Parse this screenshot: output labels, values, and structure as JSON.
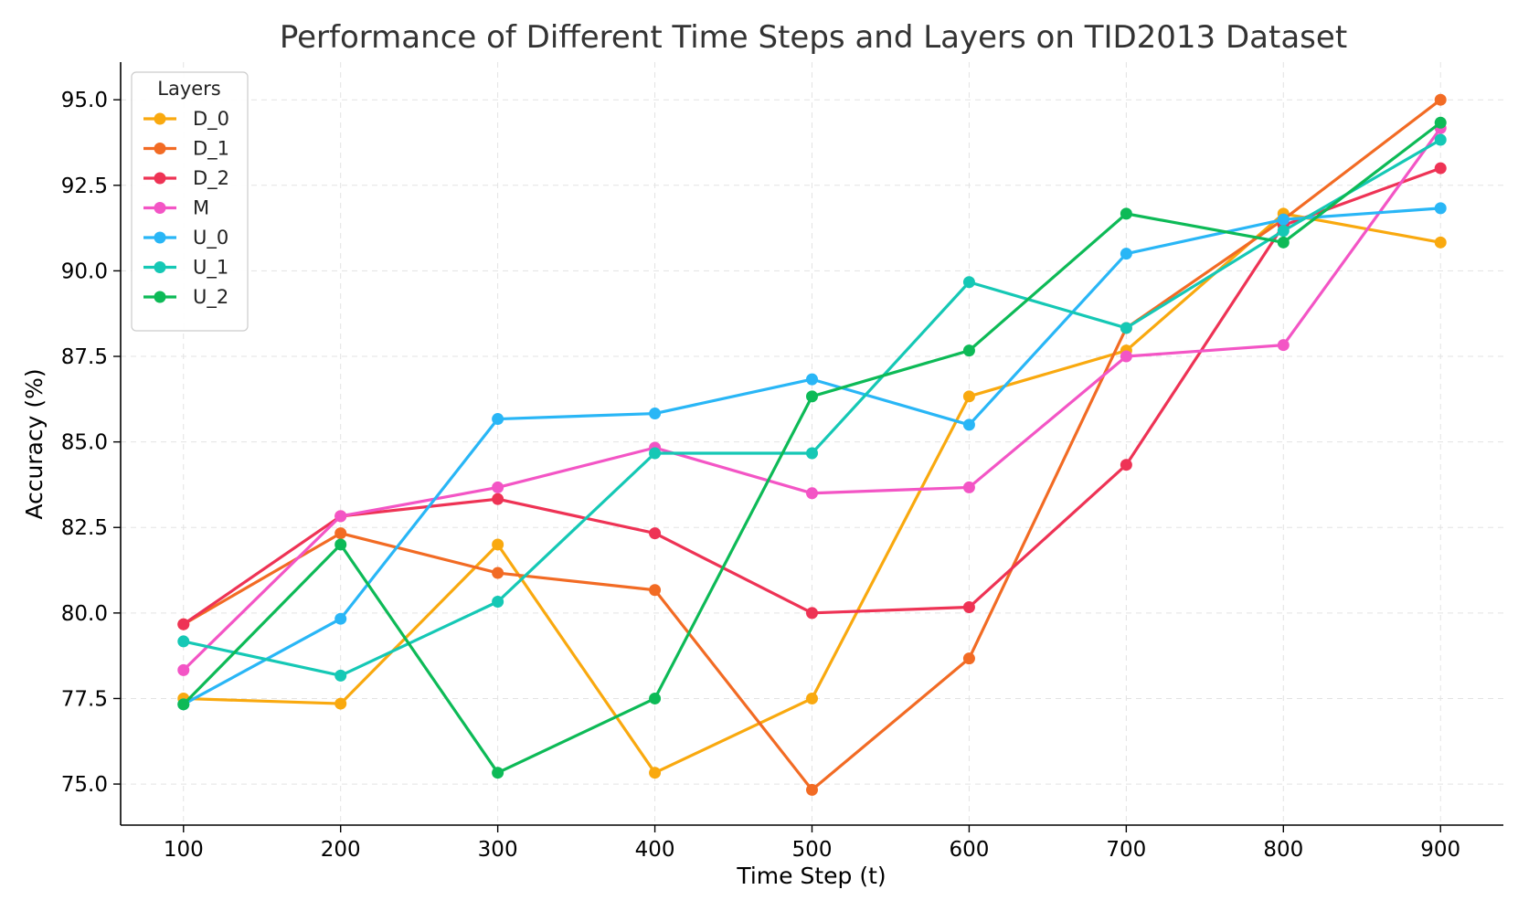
{
  "chart_data": {
    "type": "line",
    "title": "Performance of Different Time Steps and Layers on TID2013 Dataset",
    "xlabel": "Time Step (t)",
    "ylabel": "Accuracy (%)",
    "x": [
      100,
      200,
      300,
      400,
      500,
      600,
      700,
      800,
      900
    ],
    "x_tick_labels": [
      "100",
      "200",
      "300",
      "400",
      "500",
      "600",
      "700",
      "800",
      "900"
    ],
    "y_ticks": [
      75.0,
      77.5,
      80.0,
      82.5,
      85.0,
      87.5,
      90.0,
      92.5,
      95.0
    ],
    "y_tick_labels": [
      "75.0",
      "77.5",
      "80.0",
      "82.5",
      "85.0",
      "87.5",
      "90.0",
      "92.5",
      "95.0"
    ],
    "xlim": [
      60,
      940
    ],
    "ylim": [
      73.8,
      96.1
    ],
    "grid": true,
    "legend": {
      "title": "Layers",
      "position": "top-left"
    },
    "series": [
      {
        "name": "D_0",
        "color": "#F9A90F",
        "values": [
          77.5,
          77.35,
          82.0,
          75.33,
          77.5,
          86.33,
          87.67,
          91.67,
          90.83
        ]
      },
      {
        "name": "D_1",
        "color": "#F26B24",
        "values": [
          79.67,
          82.33,
          81.17,
          80.67,
          74.83,
          78.67,
          88.33,
          91.5,
          95.0
        ]
      },
      {
        "name": "D_2",
        "color": "#EE3355",
        "values": [
          79.67,
          82.83,
          83.33,
          82.33,
          80.0,
          80.17,
          84.33,
          91.33,
          93.0
        ]
      },
      {
        "name": "M",
        "color": "#F355C5",
        "values": [
          78.33,
          82.83,
          83.67,
          84.83,
          83.5,
          83.67,
          87.5,
          87.83,
          94.17
        ]
      },
      {
        "name": "U_0",
        "color": "#29B6F6",
        "values": [
          77.33,
          79.83,
          85.67,
          85.83,
          86.83,
          85.5,
          90.5,
          91.5,
          91.83
        ]
      },
      {
        "name": "U_1",
        "color": "#15C8B5",
        "values": [
          79.17,
          78.17,
          80.33,
          84.67,
          84.67,
          89.67,
          88.33,
          91.17,
          93.83
        ]
      },
      {
        "name": "U_2",
        "color": "#0DBA57",
        "values": [
          77.33,
          82.0,
          75.33,
          77.5,
          86.33,
          87.67,
          91.67,
          90.83,
          94.33
        ]
      }
    ]
  }
}
